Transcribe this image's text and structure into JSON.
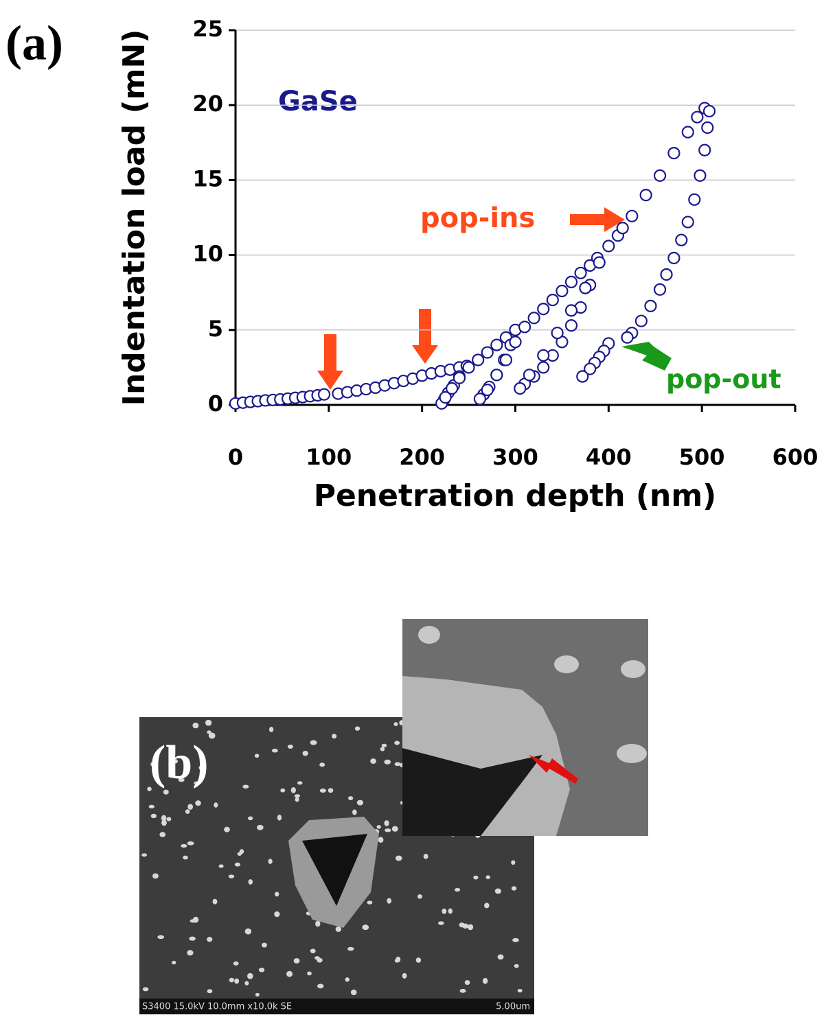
{
  "chart_data": {
    "type": "scatter",
    "x_label": "Penetration depth (nm)",
    "y_label": "Indentation load (mN)",
    "xlim": [
      0,
      600
    ],
    "xticks": [
      0,
      100,
      200,
      300,
      400,
      500,
      600
    ],
    "ylim": [
      0,
      25
    ],
    "yticks": [
      0,
      5,
      10,
      15,
      20,
      25
    ],
    "grid": true,
    "annotations": {
      "material": "GaSe",
      "pop_ins": "pop-ins",
      "pop_out": "pop-out"
    },
    "series": [
      {
        "color": "#1a1a8c",
        "x": [
          0,
          8,
          16,
          24,
          32,
          40,
          48,
          56,
          64,
          72,
          80,
          88,
          95
        ],
        "values": [
          0.1,
          0.15,
          0.2,
          0.25,
          0.3,
          0.33,
          0.37,
          0.42,
          0.47,
          0.52,
          0.58,
          0.64,
          0.7
        ]
      },
      {
        "color": "#1a1a8c",
        "x": [
          110,
          120,
          130,
          140,
          150,
          160,
          170,
          180,
          190,
          200
        ],
        "values": [
          0.75,
          0.85,
          0.95,
          1.05,
          1.15,
          1.3,
          1.45,
          1.6,
          1.75,
          1.95
        ]
      },
      {
        "color": "#1a1a8c",
        "x": [
          210,
          220,
          230,
          240,
          248,
          240,
          234,
          228,
          224,
          221
        ],
        "values": [
          2.1,
          2.25,
          2.35,
          2.5,
          2.6,
          1.9,
          1.3,
          0.8,
          0.4,
          0.1
        ]
      },
      {
        "color": "#1a1a8c",
        "x": [
          225,
          232,
          240,
          250,
          260,
          270,
          280,
          290,
          300,
          295,
          288,
          280,
          272,
          266,
          262
        ],
        "values": [
          0.5,
          1.1,
          1.8,
          2.5,
          3.0,
          3.5,
          4.0,
          4.5,
          5.0,
          4.0,
          3.0,
          2.0,
          1.2,
          0.7,
          0.4
        ]
      },
      {
        "color": "#1a1a8c",
        "x": [
          270,
          280,
          290,
          300,
          310,
          320,
          330,
          340,
          350,
          360,
          370,
          380,
          388,
          380,
          370,
          360,
          350,
          340,
          330,
          320,
          310,
          305
        ],
        "values": [
          1.0,
          2.0,
          3.0,
          4.2,
          5.2,
          5.8,
          6.4,
          7.0,
          7.6,
          8.2,
          8.8,
          9.3,
          9.8,
          8.0,
          6.5,
          5.3,
          4.2,
          3.3,
          2.5,
          1.9,
          1.4,
          1.1
        ]
      },
      {
        "color": "#1a1a8c",
        "x": [
          315,
          330,
          345,
          360,
          375,
          390,
          400,
          410,
          415
        ],
        "values": [
          2.0,
          3.3,
          4.8,
          6.3,
          7.8,
          9.5,
          10.6,
          11.3,
          11.8
        ]
      },
      {
        "color": "#1a1a8c",
        "x": [
          425,
          440,
          455,
          470,
          485,
          495,
          503,
          508,
          506,
          503,
          498,
          492,
          485,
          478,
          470,
          462,
          455,
          445,
          435,
          425,
          420
        ],
        "values": [
          12.6,
          14.0,
          15.3,
          16.8,
          18.2,
          19.2,
          19.8,
          19.6,
          18.5,
          17.0,
          15.3,
          13.7,
          12.2,
          11.0,
          9.8,
          8.7,
          7.7,
          6.6,
          5.6,
          4.8,
          4.5
        ]
      },
      {
        "color": "#1a1a8c",
        "x": [
          400,
          395,
          390,
          385,
          380,
          372
        ],
        "values": [
          4.1,
          3.6,
          3.2,
          2.8,
          2.4,
          1.9
        ]
      }
    ]
  },
  "figure": {
    "panel_a_label": "(a)",
    "panel_b_label": "(b)",
    "sem_caption": "S3400 15.0kV 10.0mm x10.0k SE",
    "sem_scale": "5.00um"
  }
}
